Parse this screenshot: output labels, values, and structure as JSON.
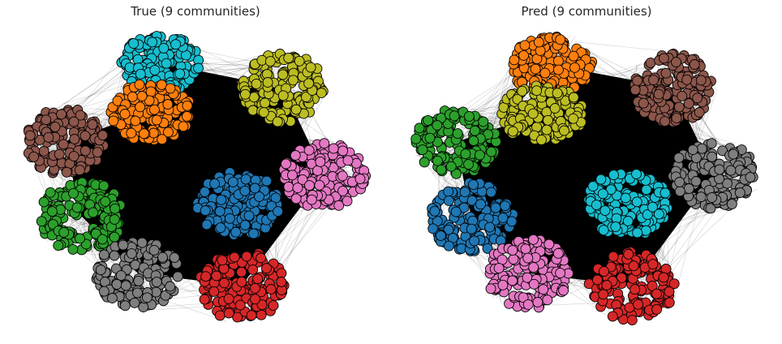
{
  "figure": {
    "background": "#ffffff",
    "edge_color": "#000000",
    "node_outline": "#000000"
  },
  "panels": [
    {
      "title": "True (9 communities)",
      "communities": [
        {
          "name": "cyan",
          "color": "#17becf"
        },
        {
          "name": "orange",
          "color": "#ff7f0e"
        },
        {
          "name": "olive",
          "color": "#bcbd22"
        },
        {
          "name": "brown",
          "color": "#8c564b"
        },
        {
          "name": "pink",
          "color": "#e377c2"
        },
        {
          "name": "blue",
          "color": "#1f77b4"
        },
        {
          "name": "green",
          "color": "#2ca02c"
        },
        {
          "name": "gray",
          "color": "#7f7f7f"
        },
        {
          "name": "red",
          "color": "#d62728"
        }
      ]
    },
    {
      "title": "Pred (9 communities)",
      "communities": [
        {
          "name": "orange",
          "color": "#ff7f0e"
        },
        {
          "name": "olive",
          "color": "#bcbd22"
        },
        {
          "name": "brown",
          "color": "#8c564b"
        },
        {
          "name": "green",
          "color": "#2ca02c"
        },
        {
          "name": "gray",
          "color": "#7f7f7f"
        },
        {
          "name": "cyan",
          "color": "#17becf"
        },
        {
          "name": "blue",
          "color": "#1f77b4"
        },
        {
          "name": "pink",
          "color": "#e377c2"
        },
        {
          "name": "red",
          "color": "#d62728"
        }
      ]
    }
  ]
}
